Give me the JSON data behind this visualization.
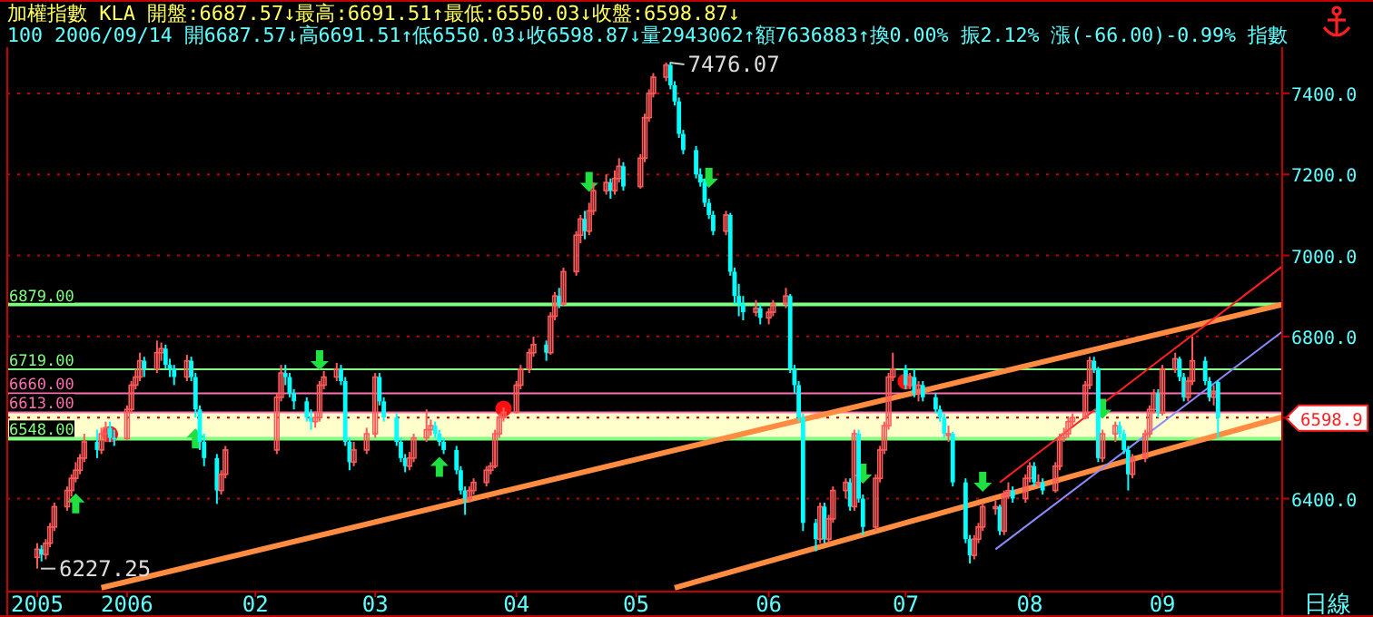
{
  "chart_data": {
    "type": "candlestick",
    "title": "加權指數 KLA 開盤:6687.57↓最高:6691.51↑最低:6550.03↓收盤:6598.87↓",
    "subtitle": "100 2006/09/14 開6687.57↓高6691.51↑低6550.03↓收6598.87↓量2943062↑額7636883↑換0.00% 振2.12% 漲(-66.00)-0.99% 指數",
    "x": [
      "2005-12-12",
      "2005-12-13",
      "2005-12-14",
      "2005-12-15",
      "2005-12-16",
      "2005-12-19",
      "2005-12-20",
      "2005-12-21",
      "2005-12-22",
      "2005-12-23",
      "2005-12-26",
      "2005-12-27",
      "2005-12-28",
      "2005-12-29",
      "2005-12-30",
      "2006-01-02",
      "2006-01-03",
      "2006-01-04",
      "2006-01-05",
      "2006-01-06",
      "2006-01-09",
      "2006-01-10",
      "2006-01-11",
      "2006-01-12",
      "2006-01-13",
      "2006-01-16",
      "2006-01-17",
      "2006-01-18",
      "2006-01-19",
      "2006-01-20",
      "2006-01-23",
      "2006-01-24",
      "2006-01-25",
      "2006-02-06",
      "2006-02-07",
      "2006-02-08",
      "2006-02-09",
      "2006-02-10",
      "2006-02-13",
      "2006-02-14",
      "2006-02-15",
      "2006-02-16",
      "2006-02-17",
      "2006-02-20",
      "2006-02-21",
      "2006-02-22",
      "2006-02-23",
      "2006-02-24",
      "2006-02-27",
      "2006-03-01",
      "2006-03-02",
      "2006-03-03",
      "2006-03-06",
      "2006-03-07",
      "2006-03-08",
      "2006-03-09",
      "2006-03-10",
      "2006-03-13",
      "2006-03-14",
      "2006-03-15",
      "2006-03-16",
      "2006-03-17",
      "2006-03-20",
      "2006-03-21",
      "2006-03-22",
      "2006-03-23",
      "2006-03-24",
      "2006-03-27",
      "2006-03-28",
      "2006-03-29",
      "2006-03-30",
      "2006-03-31",
      "2006-04-03",
      "2006-04-04",
      "2006-04-06",
      "2006-04-07",
      "2006-04-10",
      "2006-04-11",
      "2006-04-12",
      "2006-04-13",
      "2006-04-14",
      "2006-04-17",
      "2006-04-18",
      "2006-04-19",
      "2006-04-20",
      "2006-04-21",
      "2006-04-24",
      "2006-04-25",
      "2006-04-26",
      "2006-04-27",
      "2006-04-28",
      "2006-05-02",
      "2006-05-03",
      "2006-05-04",
      "2006-05-05",
      "2006-05-08",
      "2006-05-09",
      "2006-05-10",
      "2006-05-11",
      "2006-05-12",
      "2006-05-15",
      "2006-05-16",
      "2006-05-17",
      "2006-05-18",
      "2006-05-19",
      "2006-05-22",
      "2006-05-23",
      "2006-05-24",
      "2006-05-25",
      "2006-05-26",
      "2006-05-29",
      "2006-05-30",
      "2006-06-01",
      "2006-06-02",
      "2006-06-05",
      "2006-06-06",
      "2006-06-07",
      "2006-06-08",
      "2006-06-09",
      "2006-06-12",
      "2006-06-13",
      "2006-06-14",
      "2006-06-15",
      "2006-06-16",
      "2006-06-19",
      "2006-06-20",
      "2006-06-21",
      "2006-06-22",
      "2006-06-23",
      "2006-06-26",
      "2006-06-27",
      "2006-06-28",
      "2006-06-29",
      "2006-06-30",
      "2006-07-03",
      "2006-07-04",
      "2006-07-05",
      "2006-07-06",
      "2006-07-07",
      "2006-07-10",
      "2006-07-11",
      "2006-07-12",
      "2006-07-13",
      "2006-07-14",
      "2006-07-17",
      "2006-07-18",
      "2006-07-19",
      "2006-07-20",
      "2006-07-21",
      "2006-07-24",
      "2006-07-25",
      "2006-07-26",
      "2006-07-27",
      "2006-07-28",
      "2006-07-31",
      "2006-08-01",
      "2006-08-02",
      "2006-08-03",
      "2006-08-04",
      "2006-08-07",
      "2006-08-08",
      "2006-08-09",
      "2006-08-10",
      "2006-08-11",
      "2006-08-14",
      "2006-08-15",
      "2006-08-16",
      "2006-08-17",
      "2006-08-18",
      "2006-08-21",
      "2006-08-22",
      "2006-08-23",
      "2006-08-24",
      "2006-08-25",
      "2006-08-28",
      "2006-08-29",
      "2006-08-30",
      "2006-08-31",
      "2006-09-01",
      "2006-09-04",
      "2006-09-05",
      "2006-09-06",
      "2006-09-07",
      "2006-09-08",
      "2006-09-11",
      "2006-09-12",
      "2006-09-13",
      "2006-09-14"
    ],
    "ohlc": [
      [
        6255,
        6290,
        6227.25,
        6275
      ],
      [
        6275,
        6285,
        6245,
        6262
      ],
      [
        6262,
        6300,
        6250,
        6290
      ],
      [
        6290,
        6340,
        6280,
        6330
      ],
      [
        6330,
        6390,
        6320,
        6380
      ],
      [
        6380,
        6430,
        6370,
        6420
      ],
      [
        6420,
        6460,
        6405,
        6450
      ],
      [
        6450,
        6490,
        6440,
        6470
      ],
      [
        6470,
        6510,
        6460,
        6500
      ],
      [
        6500,
        6560,
        6490,
        6540
      ],
      [
        6540,
        6570,
        6500,
        6520
      ],
      [
        6520,
        6575,
        6510,
        6560
      ],
      [
        6560,
        6590,
        6540,
        6575
      ],
      [
        6575,
        6590,
        6540,
        6550
      ],
      [
        6550,
        6570,
        6530,
        6548
      ],
      [
        6548,
        6630,
        6545,
        6620
      ],
      [
        6620,
        6690,
        6610,
        6680
      ],
      [
        6680,
        6720,
        6670,
        6700
      ],
      [
        6700,
        6760,
        6690,
        6740
      ],
      [
        6740,
        6750,
        6700,
        6720
      ],
      [
        6720,
        6790,
        6710,
        6760
      ],
      [
        6760,
        6785,
        6740,
        6770
      ],
      [
        6770,
        6780,
        6720,
        6730
      ],
      [
        6730,
        6745,
        6700,
        6720
      ],
      [
        6720,
        6730,
        6680,
        6700
      ],
      [
        6700,
        6755,
        6690,
        6740
      ],
      [
        6740,
        6750,
        6690,
        6700
      ],
      [
        6700,
        6710,
        6600,
        6620
      ],
      [
        6620,
        6630,
        6520,
        6540
      ],
      [
        6540,
        6560,
        6480,
        6500
      ],
      [
        6500,
        6510,
        6387,
        6420
      ],
      [
        6420,
        6470,
        6410,
        6460
      ],
      [
        6460,
        6530,
        6450,
        6520
      ],
      [
        6520,
        6660,
        6510,
        6650
      ],
      [
        6650,
        6730,
        6640,
        6710
      ],
      [
        6710,
        6730,
        6680,
        6700
      ],
      [
        6700,
        6710,
        6650,
        6660
      ],
      [
        6660,
        6670,
        6620,
        6640
      ],
      [
        6640,
        6650,
        6590,
        6600
      ],
      [
        6600,
        6620,
        6570,
        6590
      ],
      [
        6590,
        6615,
        6575,
        6600
      ],
      [
        6600,
        6690,
        6590,
        6680
      ],
      [
        6680,
        6715,
        6670,
        6700
      ],
      [
        6700,
        6735,
        6690,
        6720
      ],
      [
        6720,
        6730,
        6680,
        6690
      ],
      [
        6690,
        6700,
        6530,
        6540
      ],
      [
        6540,
        6550,
        6470,
        6490
      ],
      [
        6490,
        6540,
        6480,
        6520
      ],
      [
        6520,
        6575,
        6510,
        6560
      ],
      [
        6560,
        6710,
        6550,
        6700
      ],
      [
        6700,
        6710,
        6630,
        6640
      ],
      [
        6640,
        6650,
        6590,
        6600
      ],
      [
        6600,
        6610,
        6530,
        6540
      ],
      [
        6540,
        6550,
        6490,
        6500
      ],
      [
        6500,
        6510,
        6465,
        6480
      ],
      [
        6480,
        6515,
        6470,
        6500
      ],
      [
        6500,
        6560,
        6490,
        6550
      ],
      [
        6550,
        6620,
        6540,
        6570
      ],
      [
        6570,
        6595,
        6555,
        6580
      ],
      [
        6580,
        6590,
        6550,
        6560
      ],
      [
        6560,
        6570,
        6530,
        6540
      ],
      [
        6540,
        6550,
        6510,
        6520
      ],
      [
        6520,
        6530,
        6460,
        6470
      ],
      [
        6470,
        6480,
        6410,
        6420
      ],
      [
        6420,
        6430,
        6360,
        6400
      ],
      [
        6400,
        6430,
        6390,
        6420
      ],
      [
        6420,
        6450,
        6410,
        6440
      ],
      [
        6440,
        6480,
        6430,
        6470
      ],
      [
        6470,
        6490,
        6460,
        6480
      ],
      [
        6480,
        6570,
        6475,
        6560
      ],
      [
        6560,
        6610,
        6550,
        6600
      ],
      [
        6600,
        6625,
        6590,
        6613
      ],
      [
        6613,
        6690,
        6610,
        6680
      ],
      [
        6680,
        6730,
        6670,
        6720
      ],
      [
        6720,
        6770,
        6710,
        6760
      ],
      [
        6760,
        6800,
        6750,
        6780
      ],
      [
        6780,
        6790,
        6740,
        6760
      ],
      [
        6760,
        6860,
        6755,
        6850
      ],
      [
        6850,
        6910,
        6840,
        6900
      ],
      [
        6900,
        6920,
        6870,
        6880
      ],
      [
        6880,
        6970,
        6875,
        6960
      ],
      [
        6960,
        7060,
        6950,
        7050
      ],
      [
        7050,
        7100,
        7030,
        7090
      ],
      [
        7090,
        7110,
        7040,
        7060
      ],
      [
        7060,
        7130,
        7050,
        7110
      ],
      [
        7110,
        7180,
        7100,
        7160
      ],
      [
        7160,
        7200,
        7150,
        7180
      ],
      [
        7180,
        7190,
        7140,
        7160
      ],
      [
        7160,
        7210,
        7150,
        7190
      ],
      [
        7190,
        7240,
        7180,
        7220
      ],
      [
        7220,
        7230,
        7160,
        7170
      ],
      [
        7170,
        7250,
        7165,
        7240
      ],
      [
        7240,
        7350,
        7230,
        7340
      ],
      [
        7340,
        7410,
        7330,
        7400
      ],
      [
        7400,
        7450,
        7390,
        7440
      ],
      [
        7440,
        7476.07,
        7430,
        7470
      ],
      [
        7470,
        7475,
        7410,
        7420
      ],
      [
        7420,
        7430,
        7370,
        7380
      ],
      [
        7380,
        7390,
        7290,
        7300
      ],
      [
        7300,
        7310,
        7250,
        7260
      ],
      [
        7260,
        7270,
        7190,
        7200
      ],
      [
        7200,
        7215,
        7170,
        7180
      ],
      [
        7180,
        7190,
        7120,
        7130
      ],
      [
        7130,
        7140,
        7090,
        7100
      ],
      [
        7100,
        7110,
        7050,
        7060
      ],
      [
        7060,
        7110,
        7050,
        7100
      ],
      [
        7100,
        7105,
        6950,
        6960
      ],
      [
        6960,
        6970,
        6880,
        6900
      ],
      [
        6900,
        6930,
        6850,
        6880
      ],
      [
        6880,
        6900,
        6840,
        6860
      ],
      [
        6860,
        6890,
        6850,
        6870
      ],
      [
        6870,
        6880,
        6830,
        6846
      ],
      [
        6846,
        6870,
        6830,
        6860
      ],
      [
        6860,
        6890,
        6850,
        6880
      ],
      [
        6880,
        6920,
        6870,
        6900
      ],
      [
        6900,
        6905,
        6710,
        6720
      ],
      [
        6720,
        6730,
        6660,
        6680
      ],
      [
        6680,
        6690,
        6590,
        6600
      ],
      [
        6600,
        6610,
        6320,
        6340
      ],
      [
        6340,
        6350,
        6270,
        6300
      ],
      [
        6300,
        6390,
        6290,
        6380
      ],
      [
        6380,
        6390,
        6290,
        6300
      ],
      [
        6300,
        6360,
        6290,
        6350
      ],
      [
        6350,
        6430,
        6340,
        6420
      ],
      [
        6420,
        6450,
        6400,
        6440
      ],
      [
        6440,
        6450,
        6370,
        6380
      ],
      [
        6380,
        6570,
        6370,
        6560
      ],
      [
        6560,
        6570,
        6390,
        6400
      ],
      [
        6400,
        6410,
        6310,
        6330
      ],
      [
        6330,
        6460,
        6320,
        6450
      ],
      [
        6450,
        6530,
        6440,
        6520
      ],
      [
        6520,
        6590,
        6510,
        6580
      ],
      [
        6580,
        6710,
        6570,
        6700
      ],
      [
        6700,
        6760,
        6690,
        6720
      ],
      [
        6720,
        6730,
        6670,
        6680
      ],
      [
        6680,
        6710,
        6670,
        6700
      ],
      [
        6700,
        6720,
        6650,
        6660
      ],
      [
        6660,
        6690,
        6640,
        6680
      ],
      [
        6680,
        6690,
        6640,
        6650
      ],
      [
        6650,
        6660,
        6610,
        6620
      ],
      [
        6620,
        6630,
        6590,
        6600
      ],
      [
        6600,
        6610,
        6550,
        6560
      ],
      [
        6560,
        6580,
        6540,
        6560
      ],
      [
        6560,
        6565,
        6430,
        6440
      ],
      [
        6440,
        6450,
        6290,
        6300
      ],
      [
        6300,
        6310,
        6240,
        6260
      ],
      [
        6260,
        6310,
        6250,
        6300
      ],
      [
        6300,
        6340,
        6290,
        6330
      ],
      [
        6330,
        6390,
        6320,
        6380
      ],
      [
        6380,
        6395,
        6360,
        6380
      ],
      [
        6380,
        6385,
        6310,
        6320
      ],
      [
        6320,
        6420,
        6310,
        6410
      ],
      [
        6410,
        6440,
        6400,
        6420
      ],
      [
        6420,
        6430,
        6390,
        6400
      ],
      [
        6400,
        6460,
        6390,
        6450
      ],
      [
        6450,
        6490,
        6440,
        6480
      ],
      [
        6480,
        6490,
        6430,
        6440
      ],
      [
        6440,
        6460,
        6430,
        6440
      ],
      [
        6440,
        6450,
        6410,
        6420
      ],
      [
        6420,
        6490,
        6415,
        6480
      ],
      [
        6480,
        6560,
        6470,
        6550
      ],
      [
        6550,
        6575,
        6540,
        6560
      ],
      [
        6560,
        6600,
        6550,
        6590
      ],
      [
        6590,
        6610,
        6580,
        6600
      ],
      [
        6600,
        6690,
        6595,
        6680
      ],
      [
        6680,
        6750,
        6670,
        6740
      ],
      [
        6740,
        6750,
        6710,
        6720
      ],
      [
        6720,
        6725,
        6490,
        6500
      ],
      [
        6500,
        6570,
        6490,
        6560
      ],
      [
        6560,
        6590,
        6540,
        6580
      ],
      [
        6580,
        6590,
        6550,
        6560
      ],
      [
        6560,
        6570,
        6510,
        6520
      ],
      [
        6520,
        6530,
        6420,
        6460
      ],
      [
        6460,
        6510,
        6450,
        6500
      ],
      [
        6500,
        6570,
        6490,
        6560
      ],
      [
        6560,
        6630,
        6550,
        6620
      ],
      [
        6620,
        6670,
        6610,
        6660
      ],
      [
        6660,
        6670,
        6600,
        6611
      ],
      [
        6611,
        6730,
        6605,
        6720
      ],
      [
        6720,
        6760,
        6710,
        6745
      ],
      [
        6745,
        6750,
        6690,
        6700
      ],
      [
        6700,
        6710,
        6640,
        6650
      ],
      [
        6650,
        6700,
        6640,
        6690
      ],
      [
        6690,
        6800,
        6680,
        6740
      ],
      [
        6740,
        6750,
        6680,
        6690
      ],
      [
        6690,
        6700,
        6640,
        6650
      ],
      [
        6650,
        6680,
        6630,
        6664.87
      ],
      [
        6687.57,
        6691.51,
        6550.03,
        6598.87
      ]
    ],
    "series": [
      {
        "type": "line",
        "x": [
          "2005-12-27",
          "2006-09-29"
        ],
        "values": [
          6180,
          6879
        ],
        "color": "#ff8c40"
      },
      {
        "type": "line",
        "x": [
          "2006-05-10",
          "2006-09-29"
        ],
        "values": [
          6180,
          6601
        ],
        "color": "#ff8c40"
      },
      {
        "type": "line",
        "x": [
          "2006-07-25",
          "2006-09-29"
        ],
        "values": [
          6440,
          6973
        ],
        "color": "#ff2020"
      },
      {
        "type": "line",
        "x": [
          "2006-07-24",
          "2006-09-29"
        ],
        "values": [
          6275,
          6812
        ],
        "color": "#8c8cff"
      }
    ],
    "xlim": [
      "2005-12-05",
      "2006-09-29"
    ],
    "xticks": [
      {
        "value": "2005-12-12",
        "label": "2005"
      },
      {
        "value": "2006-01-02",
        "label": "2006"
      },
      {
        "value": "2006-02-01",
        "label": "02"
      },
      {
        "value": "2006-03-01",
        "label": "03"
      },
      {
        "value": "2006-04-03",
        "label": "04"
      },
      {
        "value": "2006-05-01",
        "label": "05"
      },
      {
        "value": "2006-06-01",
        "label": "06"
      },
      {
        "value": "2006-07-03",
        "label": "07"
      },
      {
        "value": "2006-08-01",
        "label": "08"
      },
      {
        "value": "2006-09-01",
        "label": "09"
      }
    ],
    "ylim": [
      6175,
      7505
    ],
    "yticks": [
      {
        "value": 6400,
        "label": "6400.0"
      },
      {
        "value": 6600,
        "label": null
      },
      {
        "value": 6800,
        "label": "6800.0"
      },
      {
        "value": 7000,
        "label": "7000.0"
      },
      {
        "value": 7200,
        "label": "7200.0"
      },
      {
        "value": 7400,
        "label": "7400.0"
      }
    ],
    "grid": "y",
    "bands": [
      {
        "axis": "y",
        "from": 6548,
        "to": 6613,
        "color": "#ffffcc"
      }
    ],
    "ref_lines": [
      {
        "axis": "y",
        "value": 6879,
        "label": "6879.00",
        "color": "#80ff80"
      },
      {
        "axis": "y",
        "value": 6719,
        "label": "6719.00",
        "color": "#80ff80"
      },
      {
        "axis": "y",
        "value": 6660,
        "label": "6660.00",
        "color": "#ff70b0"
      },
      {
        "axis": "y",
        "value": 6613,
        "label": "6613.00",
        "color": "#ff70b0"
      },
      {
        "axis": "y",
        "value": 6548,
        "label": "6548.00",
        "color": "#80ff80"
      }
    ],
    "annotations": [
      {
        "text": "7476.07",
        "x": "2006-05-08",
        "y": 7476.07
      },
      {
        "text": "6227.25",
        "x": "2005-12-12",
        "y": 6227.25
      },
      "6598.9",
      "日線"
    ]
  }
}
